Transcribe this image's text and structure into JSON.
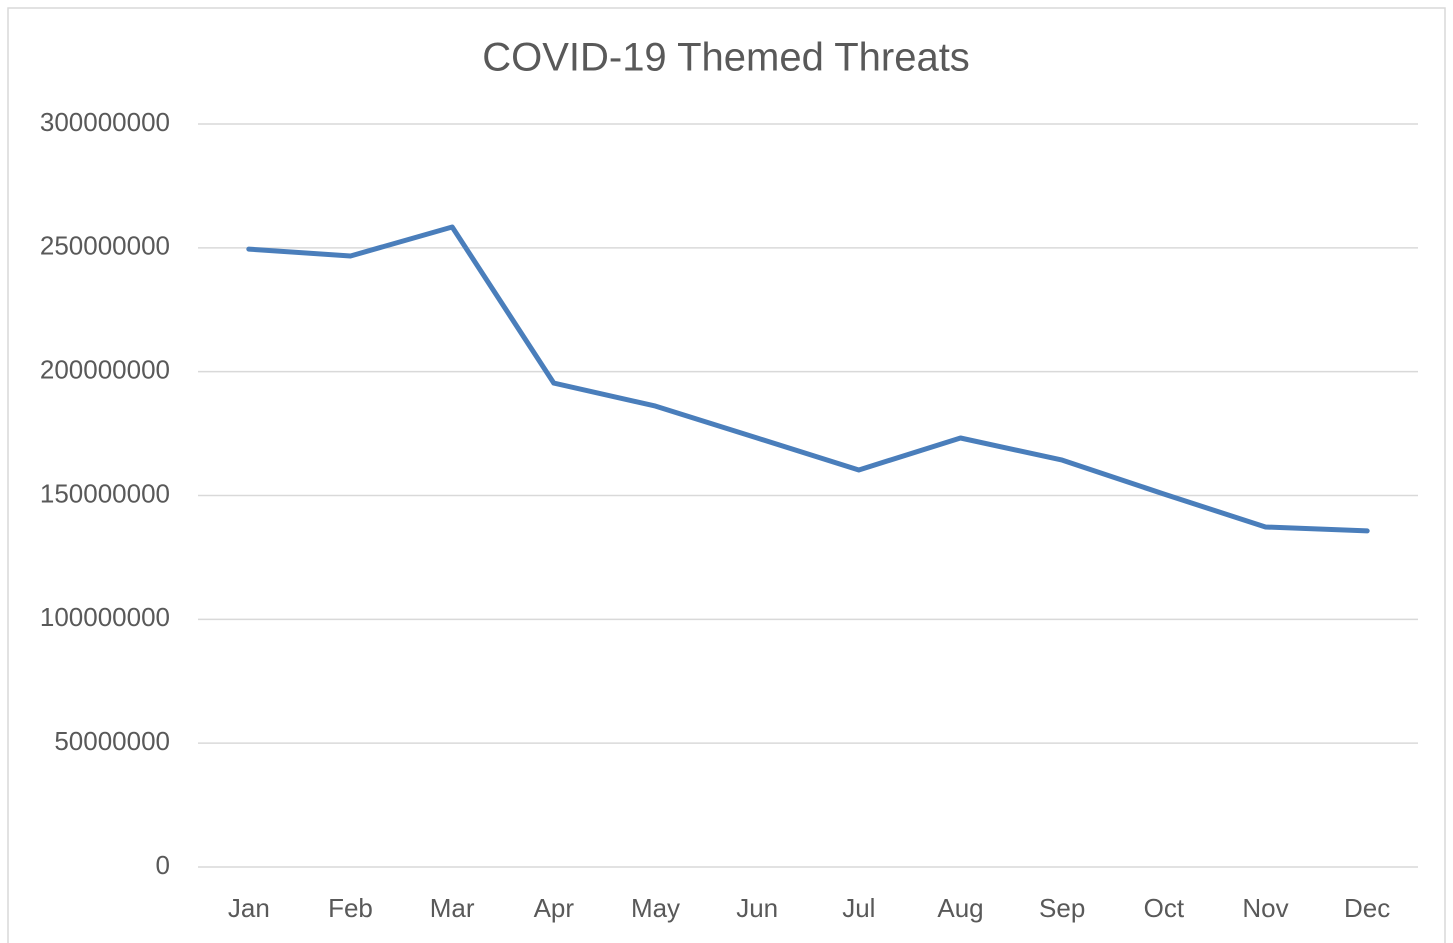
{
  "chart_data": {
    "type": "line",
    "title": "COVID-19 Themed Threats",
    "categories": [
      "Jan",
      "Feb",
      "Mar",
      "Apr",
      "May",
      "Jun",
      "Jul",
      "Aug",
      "Sep",
      "Oct",
      "Nov",
      "Dec"
    ],
    "series": [
      {
        "name": "COVID-19 Themed Threats",
        "color": "#4a7ebb",
        "values": [
          249500000,
          246700000,
          258400000,
          195400000,
          186100000,
          173200000,
          160300000,
          173200000,
          164300000,
          150600000,
          137300000,
          135700000
        ]
      }
    ],
    "ylim": [
      0,
      300000000
    ],
    "yticks": [
      0,
      50000000,
      100000000,
      150000000,
      200000000,
      250000000,
      300000000
    ],
    "grid": true
  }
}
